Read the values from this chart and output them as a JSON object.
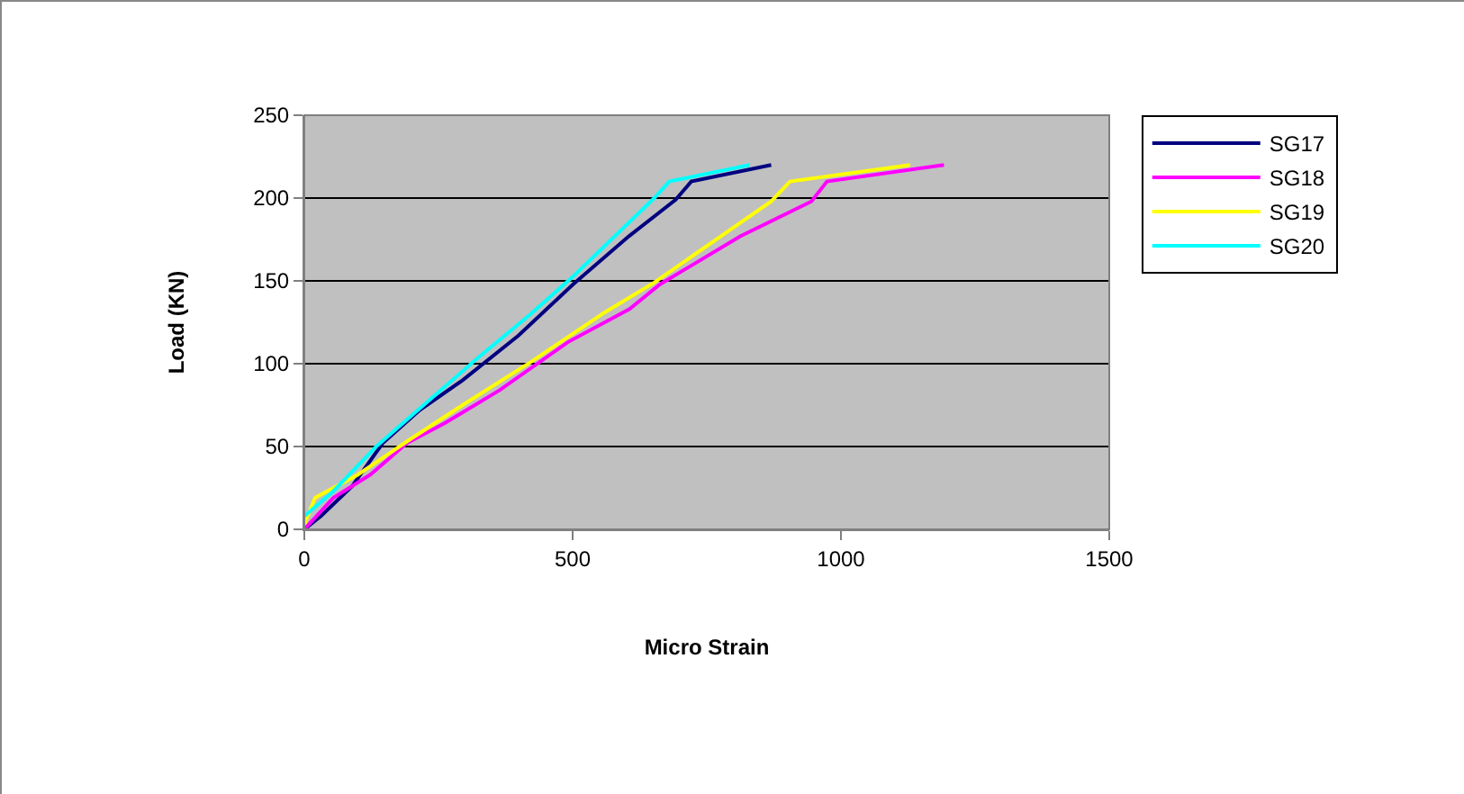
{
  "chart_data": {
    "type": "line",
    "xlabel": "Micro Strain",
    "ylabel": "Load (KN)",
    "xlim": [
      0,
      1500
    ],
    "xticks": [
      0,
      500,
      1000,
      1500
    ],
    "ylim": [
      0,
      250
    ],
    "yticks": [
      0,
      50,
      100,
      150,
      200,
      250
    ],
    "grid": "y",
    "legend": "right",
    "marker": "none",
    "line_style": "solid",
    "series": [
      {
        "name": "SG17",
        "color": "#000080",
        "x": [
          0,
          31,
          89,
          146,
          215,
          295,
          399,
          501,
          605,
          692,
          721,
          870
        ],
        "values": [
          0,
          8,
          26,
          52,
          72,
          90,
          117,
          148,
          177,
          199,
          210,
          220
        ]
      },
      {
        "name": "SG18",
        "color": "#ff00ff",
        "x": [
          0,
          54,
          123,
          191,
          261,
          364,
          491,
          606,
          663,
          813,
          945,
          974,
          1192
        ],
        "values": [
          0,
          19,
          33,
          52,
          64,
          84,
          113,
          133,
          148,
          177,
          198,
          210,
          220
        ]
      },
      {
        "name": "SG19",
        "color": "#ffff00",
        "x": [
          0,
          20,
          100,
          191,
          295,
          422,
          560,
          652,
          870,
          905,
          1129
        ],
        "values": [
          3,
          19,
          33,
          53,
          75,
          101,
          131,
          149,
          198,
          210,
          220
        ]
      },
      {
        "name": "SG20",
        "color": "#00ffff",
        "x": [
          0,
          54,
          134,
          215,
          318,
          422,
          502,
          652,
          680,
          830
        ],
        "values": [
          8,
          23,
          50,
          73,
          102,
          130,
          153,
          200,
          210,
          220
        ]
      }
    ]
  }
}
